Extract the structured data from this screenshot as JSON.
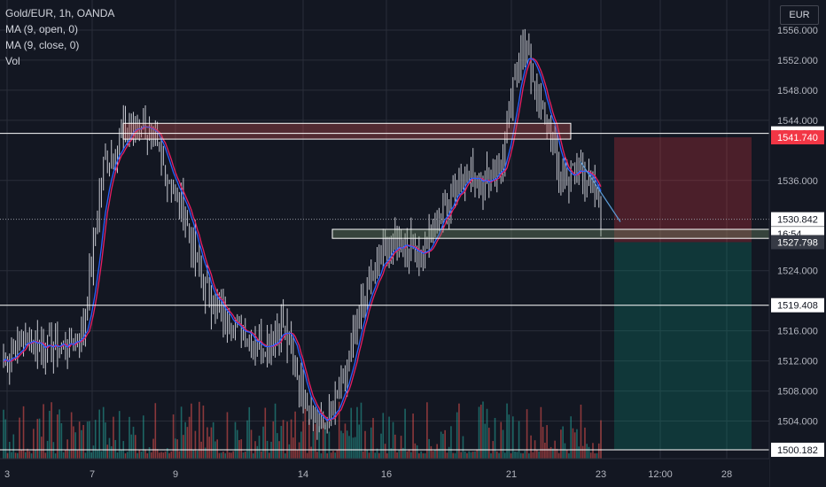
{
  "legend": {
    "symbol": "Gold/EUR, 1h, OANDA",
    "ma_open": "MA (9, open, 0)",
    "ma_close": "MA (9, close, 0)",
    "volume": "Vol"
  },
  "currency_button": "EUR",
  "colors": {
    "background": "#131722",
    "grid": "#2a2e39",
    "axis_text": "#b2b5be",
    "candle": "#c7c9d1",
    "ma_open": "#e91e63",
    "ma_close": "#2962ff",
    "zone_border": "#ffffff",
    "resistance_fill": "rgba(200,80,80,0.35)",
    "support_fill": "rgba(120,150,110,0.35)",
    "risk_fill": "rgba(242,54,69,0.25)",
    "target_fill": "rgba(8,153,129,0.25)",
    "vol_up": "rgba(38,166,154,0.55)",
    "vol_down": "rgba(239,83,80,0.55)",
    "stop_label_bg": "#f23645",
    "entry_label_bg": "#363a45"
  },
  "chart_data": {
    "type": "candlestick",
    "title": "Gold/EUR, 1h, OANDA",
    "indicators": [
      "MA (9, open, 0)",
      "MA (9, close, 0)",
      "Vol"
    ],
    "y_axis": {
      "range": [
        1499,
        1560
      ],
      "ticks": [
        "1556.000",
        "1552.000",
        "1548.000",
        "1544.000",
        "1536.000",
        "1524.000",
        "1516.000",
        "1512.000",
        "1508.000",
        "1504.000"
      ]
    },
    "x_axis": {
      "ticks": [
        "3",
        "7",
        "9",
        "14",
        "16",
        "21",
        "23",
        "12:00",
        "28"
      ]
    },
    "price_path": [
      {
        "date": "3",
        "price": 1512
      },
      {
        "date": "4",
        "price": 1515
      },
      {
        "date": "5",
        "price": 1514
      },
      {
        "date": "6",
        "price": 1514
      },
      {
        "date": "7",
        "price": 1516
      },
      {
        "date": "8",
        "price": 1538
      },
      {
        "date": "8",
        "price": 1542
      },
      {
        "date": "9",
        "price": 1544
      },
      {
        "date": "9",
        "price": 1538
      },
      {
        "date": "10",
        "price": 1532
      },
      {
        "date": "10",
        "price": 1522
      },
      {
        "date": "11",
        "price": 1518
      },
      {
        "date": "12",
        "price": 1516
      },
      {
        "date": "13",
        "price": 1514
      },
      {
        "date": "13",
        "price": 1517
      },
      {
        "date": "14",
        "price": 1508
      },
      {
        "date": "14",
        "price": 1503
      },
      {
        "date": "15",
        "price": 1508
      },
      {
        "date": "15",
        "price": 1520
      },
      {
        "date": "16",
        "price": 1526
      },
      {
        "date": "17",
        "price": 1528
      },
      {
        "date": "18",
        "price": 1526
      },
      {
        "date": "19",
        "price": 1532
      },
      {
        "date": "19",
        "price": 1537
      },
      {
        "date": "20",
        "price": 1536
      },
      {
        "date": "20",
        "price": 1538
      },
      {
        "date": "21",
        "price": 1555
      },
      {
        "date": "21",
        "price": 1546
      },
      {
        "date": "22",
        "price": 1536
      },
      {
        "date": "22",
        "price": 1538
      },
      {
        "date": "23",
        "price": 1532
      }
    ],
    "levels": {
      "resistance_line": 1542.26,
      "current_price": 1530.842,
      "support_line": 1519.408,
      "bottom_line": 1500.182
    },
    "zones": [
      {
        "name": "resistance",
        "low": 1541.5,
        "high": 1543.6
      },
      {
        "name": "support",
        "low": 1528.3,
        "high": 1529.5
      }
    ],
    "position": {
      "stop": 1541.74,
      "entry": 1527.798,
      "target": 1500.182
    },
    "price_labels": [
      "1542.260",
      "1541.740",
      "1530.842",
      "16:54",
      "1527.798",
      "1519.408",
      "1500.182"
    ]
  }
}
